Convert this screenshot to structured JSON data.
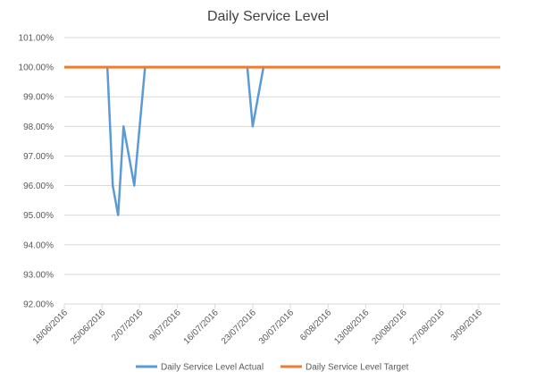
{
  "chart_data": {
    "type": "line",
    "title": "Daily Service Level",
    "x": [
      "18/06/2016",
      "19/06/2016",
      "20/06/2016",
      "21/06/2016",
      "22/06/2016",
      "23/06/2016",
      "24/06/2016",
      "25/06/2016",
      "26/06/2016",
      "27/06/2016",
      "28/06/2016",
      "29/06/2016",
      "30/06/2016",
      "1/07/2016",
      "2/07/2016",
      "3/07/2016",
      "4/07/2016",
      "5/07/2016",
      "6/07/2016",
      "7/07/2016",
      "8/07/2016",
      "9/07/2016",
      "10/07/2016",
      "11/07/2016",
      "12/07/2016",
      "13/07/2016",
      "14/07/2016",
      "15/07/2016",
      "16/07/2016",
      "17/07/2016",
      "18/07/2016",
      "19/07/2016",
      "20/07/2016",
      "21/07/2016",
      "22/07/2016",
      "23/07/2016",
      "24/07/2016",
      "25/07/2016",
      "26/07/2016",
      "27/07/2016",
      "28/07/2016",
      "29/07/2016",
      "30/07/2016",
      "31/07/2016",
      "1/08/2016",
      "2/08/2016",
      "3/08/2016",
      "4/08/2016",
      "5/08/2016",
      "6/08/2016",
      "7/08/2016",
      "8/08/2016",
      "9/08/2016",
      "10/08/2016",
      "11/08/2016",
      "12/08/2016",
      "13/08/2016",
      "14/08/2016",
      "15/08/2016",
      "16/08/2016",
      "17/08/2016",
      "18/08/2016",
      "19/08/2016",
      "20/08/2016",
      "21/08/2016",
      "22/08/2016",
      "23/08/2016",
      "24/08/2016",
      "25/08/2016",
      "26/08/2016",
      "27/08/2016",
      "28/08/2016",
      "29/08/2016",
      "30/08/2016",
      "31/08/2016",
      "1/09/2016",
      "2/09/2016",
      "3/09/2016",
      "4/09/2016",
      "5/09/2016",
      "6/09/2016",
      "7/09/2016"
    ],
    "xlim": [
      "18/06/2016",
      "7/09/2016"
    ],
    "xticks": [
      "18/06/2016",
      "25/06/2016",
      "2/07/2016",
      "9/07/2016",
      "16/07/2016",
      "23/07/2016",
      "30/07/2016",
      "6/08/2016",
      "13/08/2016",
      "20/08/2016",
      "27/08/2016",
      "3/09/2016"
    ],
    "series": [
      {
        "name": "Daily Service Level Actual",
        "color": "#5b9bd5",
        "values": [
          100,
          100,
          100,
          100,
          100,
          100,
          100,
          100,
          100,
          96,
          95,
          98,
          97,
          96,
          98,
          100,
          100,
          100,
          100,
          100,
          100,
          100,
          100,
          100,
          100,
          100,
          100,
          100,
          100,
          100,
          100,
          100,
          100,
          100,
          100,
          98,
          99,
          100,
          100,
          100,
          100,
          100,
          100,
          100,
          100,
          100,
          100,
          100,
          100,
          100,
          100,
          100,
          100,
          100,
          100,
          100,
          100,
          100,
          100,
          100,
          100,
          100,
          100,
          100,
          100,
          100,
          100,
          100,
          100,
          100,
          100,
          100,
          100,
          100,
          100,
          100,
          100,
          100,
          100,
          100,
          100,
          100
        ]
      },
      {
        "name": "Daily Service Level Target",
        "color": "#ed7d31",
        "values": [
          100,
          100,
          100,
          100,
          100,
          100,
          100,
          100,
          100,
          100,
          100,
          100,
          100,
          100,
          100,
          100,
          100,
          100,
          100,
          100,
          100,
          100,
          100,
          100,
          100,
          100,
          100,
          100,
          100,
          100,
          100,
          100,
          100,
          100,
          100,
          100,
          100,
          100,
          100,
          100,
          100,
          100,
          100,
          100,
          100,
          100,
          100,
          100,
          100,
          100,
          100,
          100,
          100,
          100,
          100,
          100,
          100,
          100,
          100,
          100,
          100,
          100,
          100,
          100,
          100,
          100,
          100,
          100,
          100,
          100,
          100,
          100,
          100,
          100,
          100,
          100,
          100,
          100,
          100,
          100,
          100,
          100
        ]
      }
    ],
    "ylim": [
      92,
      101
    ],
    "yticks": [
      {
        "value": 92,
        "label": "92.00%"
      },
      {
        "value": 93,
        "label": "93.00%"
      },
      {
        "value": 94,
        "label": "94.00%"
      },
      {
        "value": 95,
        "label": "95.00%"
      },
      {
        "value": 96,
        "label": "96.00%"
      },
      {
        "value": 97,
        "label": "97.00%"
      },
      {
        "value": 98,
        "label": "98.00%"
      },
      {
        "value": 99,
        "label": "99.00%"
      },
      {
        "value": 100,
        "label": "100.00%"
      },
      {
        "value": 101,
        "label": "101.00%"
      }
    ],
    "grid": true
  }
}
